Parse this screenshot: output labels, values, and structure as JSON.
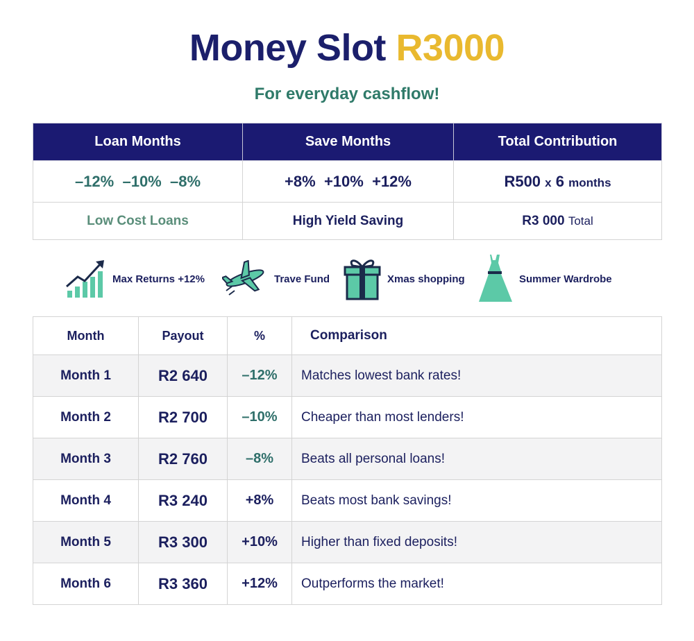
{
  "header": {
    "title": "Money Slot",
    "title_amount": "R3000",
    "subtitle": "For everyday cashflow!"
  },
  "summary": {
    "headers": [
      "Loan Months",
      "Save Months",
      "Total Contribution"
    ],
    "rows": [
      [
        [
          "–12%",
          "–10%",
          "–8%"
        ],
        [
          "+8%",
          "+10%",
          "+12%"
        ],
        [
          "R500",
          "x",
          "6",
          "months"
        ]
      ],
      [
        [
          "Low Cost Loans"
        ],
        [
          "High Yield Saving"
        ],
        [
          "R3 000",
          "Total"
        ]
      ]
    ]
  },
  "features": [
    "Max Returns +12%",
    "Trave Fund",
    "Xmas shopping",
    "Summer Wardrobe"
  ],
  "payout_table": {
    "headers": [
      "Month",
      "Payout",
      "%",
      "Comparison"
    ],
    "rows": [
      [
        "Month 1",
        "R2 640",
        "–12%",
        "Matches lowest bank rates!"
      ],
      [
        "Month 2",
        "R2 700",
        "–10%",
        "Cheaper than most lenders!"
      ],
      [
        "Month 3",
        "R2 760",
        "–8%",
        "Beats all personal loans!"
      ],
      [
        "Month 4",
        "R3 240",
        "+8%",
        "Beats most bank savings!"
      ],
      [
        "Month 5",
        "R3 300",
        "+10%",
        "Higher than fixed deposits!"
      ],
      [
        "Month 6",
        "R3 360",
        "+12%",
        "Outperforms the market!"
      ]
    ]
  }
}
